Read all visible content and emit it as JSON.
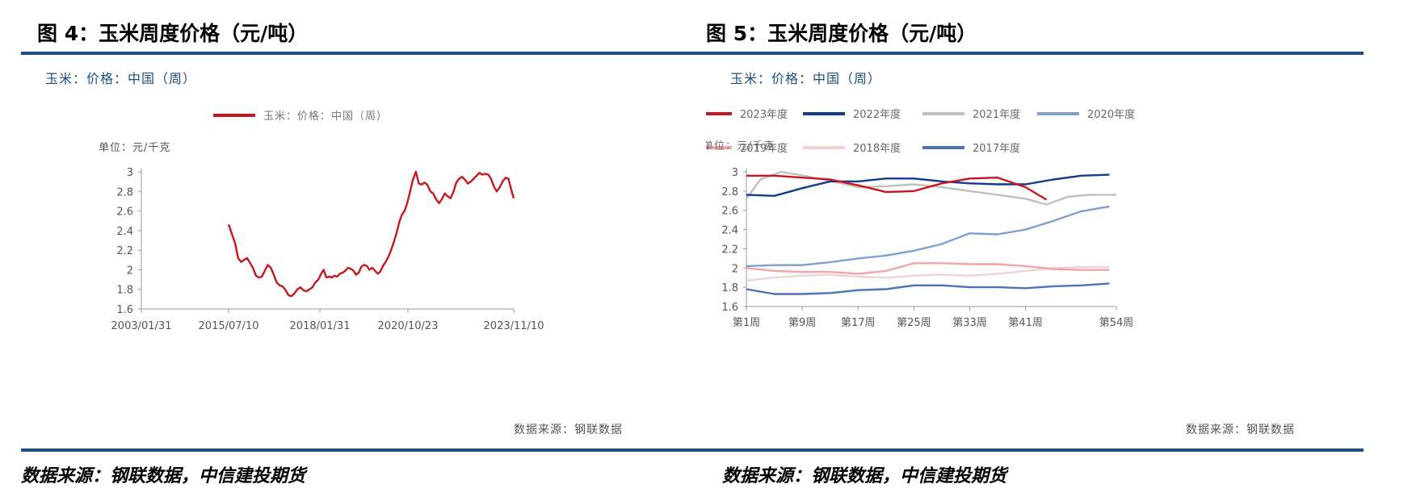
{
  "figures": [
    {
      "title": "图 4：玉米周度价格（元/吨）",
      "subtitle": "玉米：价格：中国（周）",
      "source_inner": "数据来源：钢联数据",
      "source_outer": "数据来源：钢联数据，中信建投期货"
    },
    {
      "title": "图 5：玉米周度价格（元/吨）",
      "subtitle": "玉米：价格：中国（周）",
      "source_inner": "数据来源：钢联数据",
      "source_outer": "数据来源：钢联数据，中信建投期货"
    }
  ],
  "chart_data": [
    {
      "type": "line",
      "unit_label": "单位：元/千克",
      "xlabel": "",
      "ylabel": "",
      "ylim": [
        1.6,
        3.0
      ],
      "yticks": [
        3,
        2.8,
        2.6,
        2.4,
        2.2,
        2,
        1.8,
        1.6
      ],
      "xticks": [
        "2003/01/31",
        "2015/07/10",
        "2018/01/31",
        "2020/10/23",
        "2023/11/10"
      ],
      "grid": false,
      "legend_position": "top-center",
      "colors": {
        "series": "#c8161d",
        "axis": "#999999"
      },
      "series": [
        {
          "name": "玉米：价格：中国（周）",
          "color": "#c8161d",
          "points": [
            [
              "2015-06-15",
              2.46
            ],
            [
              "2015-07-15",
              2.45
            ],
            [
              "2015-08-15",
              2.36
            ],
            [
              "2015-09-15",
              2.27
            ],
            [
              "2015-10-15",
              2.12
            ],
            [
              "2015-11-15",
              2.08
            ],
            [
              "2015-12-15",
              2.1
            ],
            [
              "2016-01-15",
              2.12
            ],
            [
              "2016-02-15",
              2.07
            ],
            [
              "2016-03-15",
              2.02
            ],
            [
              "2016-04-15",
              1.94
            ],
            [
              "2016-05-15",
              1.92
            ],
            [
              "2016-06-15",
              1.93
            ],
            [
              "2016-07-15",
              1.99
            ],
            [
              "2016-08-15",
              2.05
            ],
            [
              "2016-09-15",
              2.02
            ],
            [
              "2016-10-15",
              1.95
            ],
            [
              "2016-11-15",
              1.87
            ],
            [
              "2016-12-15",
              1.84
            ],
            [
              "2017-01-15",
              1.83
            ],
            [
              "2017-02-15",
              1.79
            ],
            [
              "2017-03-15",
              1.74
            ],
            [
              "2017-04-15",
              1.73
            ],
            [
              "2017-05-15",
              1.76
            ],
            [
              "2017-06-15",
              1.8
            ],
            [
              "2017-07-15",
              1.82
            ],
            [
              "2017-08-15",
              1.79
            ],
            [
              "2017-09-15",
              1.78
            ],
            [
              "2017-10-15",
              1.8
            ],
            [
              "2017-11-15",
              1.82
            ],
            [
              "2017-12-15",
              1.87
            ],
            [
              "2018-01-15",
              1.9
            ],
            [
              "2018-02-15",
              1.96
            ],
            [
              "2018-03-15",
              2.0
            ],
            [
              "2018-04-15",
              1.92
            ],
            [
              "2018-05-15",
              1.93
            ],
            [
              "2018-06-15",
              1.92
            ],
            [
              "2018-07-15",
              1.94
            ],
            [
              "2018-08-15",
              1.93
            ],
            [
              "2018-09-15",
              1.96
            ],
            [
              "2018-10-15",
              1.97
            ],
            [
              "2018-11-15",
              1.99
            ],
            [
              "2018-12-15",
              2.02
            ],
            [
              "2019-01-15",
              2.01
            ],
            [
              "2019-02-15",
              1.99
            ],
            [
              "2019-03-15",
              1.95
            ],
            [
              "2019-04-15",
              1.97
            ],
            [
              "2019-05-15",
              2.03
            ],
            [
              "2019-06-15",
              2.05
            ],
            [
              "2019-07-15",
              2.04
            ],
            [
              "2019-08-15",
              2.0
            ],
            [
              "2019-09-15",
              2.02
            ],
            [
              "2019-10-15",
              1.99
            ],
            [
              "2019-11-15",
              1.96
            ],
            [
              "2019-12-15",
              1.98
            ],
            [
              "2020-01-15",
              2.04
            ],
            [
              "2020-02-15",
              2.08
            ],
            [
              "2020-03-15",
              2.13
            ],
            [
              "2020-04-15",
              2.2
            ],
            [
              "2020-05-15",
              2.28
            ],
            [
              "2020-06-15",
              2.37
            ],
            [
              "2020-07-15",
              2.48
            ],
            [
              "2020-08-15",
              2.56
            ],
            [
              "2020-09-15",
              2.6
            ],
            [
              "2020-10-15",
              2.68
            ],
            [
              "2020-11-15",
              2.8
            ],
            [
              "2020-12-15",
              2.92
            ],
            [
              "2021-01-15",
              3.0
            ],
            [
              "2021-02-15",
              2.88
            ],
            [
              "2021-03-15",
              2.87
            ],
            [
              "2021-04-15",
              2.89
            ],
            [
              "2021-05-15",
              2.87
            ],
            [
              "2021-06-15",
              2.8
            ],
            [
              "2021-07-15",
              2.78
            ],
            [
              "2021-08-15",
              2.72
            ],
            [
              "2021-09-15",
              2.68
            ],
            [
              "2021-10-15",
              2.72
            ],
            [
              "2021-11-15",
              2.78
            ],
            [
              "2021-12-15",
              2.75
            ],
            [
              "2022-01-15",
              2.73
            ],
            [
              "2022-02-15",
              2.8
            ],
            [
              "2022-03-15",
              2.89
            ],
            [
              "2022-04-15",
              2.93
            ],
            [
              "2022-05-15",
              2.95
            ],
            [
              "2022-06-15",
              2.92
            ],
            [
              "2022-07-15",
              2.88
            ],
            [
              "2022-08-15",
              2.9
            ],
            [
              "2022-09-15",
              2.93
            ],
            [
              "2022-10-15",
              2.96
            ],
            [
              "2022-11-15",
              2.99
            ],
            [
              "2022-12-15",
              2.97
            ],
            [
              "2023-01-15",
              2.98
            ],
            [
              "2023-02-15",
              2.97
            ],
            [
              "2023-03-15",
              2.93
            ],
            [
              "2023-04-15",
              2.85
            ],
            [
              "2023-05-15",
              2.8
            ],
            [
              "2023-06-15",
              2.84
            ],
            [
              "2023-07-15",
              2.9
            ],
            [
              "2023-08-15",
              2.94
            ],
            [
              "2023-09-15",
              2.93
            ],
            [
              "2023-10-15",
              2.82
            ],
            [
              "2023-11-10",
              2.73
            ]
          ]
        }
      ]
    },
    {
      "type": "line",
      "unit_label": "单位：元/千克",
      "xlabel": "",
      "ylabel": "",
      "ylim": [
        1.6,
        3.0
      ],
      "yticks": [
        3,
        2.8,
        2.6,
        2.4,
        2.2,
        2,
        1.8,
        1.6
      ],
      "xticks": [
        {
          "week": 1,
          "label": "第1周"
        },
        {
          "week": 9,
          "label": "第9周"
        },
        {
          "week": 17,
          "label": "第17周"
        },
        {
          "week": 25,
          "label": "第25周"
        },
        {
          "week": 33,
          "label": "第33周"
        },
        {
          "week": 41,
          "label": "第41周"
        },
        {
          "week": 54,
          "label": "第54周"
        }
      ],
      "grid": false,
      "legend_position": "top",
      "colors": {
        "axis": "#999999"
      },
      "series": [
        {
          "name": "2023年度",
          "color": "#c8161d",
          "points": [
            [
              1,
              2.96
            ],
            [
              5,
              2.96
            ],
            [
              9,
              2.94
            ],
            [
              13,
              2.92
            ],
            [
              17,
              2.86
            ],
            [
              21,
              2.79
            ],
            [
              25,
              2.8
            ],
            [
              29,
              2.88
            ],
            [
              33,
              2.93
            ],
            [
              37,
              2.94
            ],
            [
              41,
              2.84
            ],
            [
              44,
              2.71
            ]
          ]
        },
        {
          "name": "2022年度",
          "color": "#0f3c8c",
          "points": [
            [
              1,
              2.76
            ],
            [
              5,
              2.75
            ],
            [
              9,
              2.83
            ],
            [
              13,
              2.9
            ],
            [
              17,
              2.9
            ],
            [
              21,
              2.93
            ],
            [
              25,
              2.93
            ],
            [
              29,
              2.9
            ],
            [
              33,
              2.88
            ],
            [
              37,
              2.87
            ],
            [
              41,
              2.87
            ],
            [
              45,
              2.92
            ],
            [
              49,
              2.96
            ],
            [
              53,
              2.97
            ]
          ]
        },
        {
          "name": "2021年度",
          "color": "#bfbfbf",
          "points": [
            [
              1,
              2.72
            ],
            [
              3,
              2.92
            ],
            [
              6,
              3.0
            ],
            [
              10,
              2.95
            ],
            [
              14,
              2.89
            ],
            [
              17,
              2.84
            ],
            [
              21,
              2.85
            ],
            [
              25,
              2.87
            ],
            [
              29,
              2.84
            ],
            [
              33,
              2.8
            ],
            [
              37,
              2.76
            ],
            [
              41,
              2.72
            ],
            [
              44,
              2.66
            ],
            [
              47,
              2.74
            ],
            [
              50,
              2.76
            ],
            [
              54,
              2.76
            ]
          ]
        },
        {
          "name": "2020年度",
          "color": "#7f9fd4",
          "points": [
            [
              1,
              2.02
            ],
            [
              5,
              2.03
            ],
            [
              9,
              2.03
            ],
            [
              13,
              2.06
            ],
            [
              17,
              2.1
            ],
            [
              21,
              2.13
            ],
            [
              25,
              2.18
            ],
            [
              29,
              2.25
            ],
            [
              33,
              2.36
            ],
            [
              37,
              2.35
            ],
            [
              41,
              2.4
            ],
            [
              45,
              2.49
            ],
            [
              49,
              2.59
            ],
            [
              53,
              2.64
            ]
          ]
        },
        {
          "name": "2019年度",
          "color": "#f4a3a8",
          "points": [
            [
              1,
              2.0
            ],
            [
              5,
              1.97
            ],
            [
              9,
              1.96
            ],
            [
              13,
              1.96
            ],
            [
              17,
              1.94
            ],
            [
              21,
              1.97
            ],
            [
              25,
              2.05
            ],
            [
              29,
              2.05
            ],
            [
              33,
              2.04
            ],
            [
              37,
              2.04
            ],
            [
              41,
              2.02
            ],
            [
              45,
              1.99
            ],
            [
              49,
              1.98
            ],
            [
              53,
              1.98
            ]
          ]
        },
        {
          "name": "2018年度",
          "color": "#f2d3d5",
          "points": [
            [
              1,
              1.87
            ],
            [
              5,
              1.9
            ],
            [
              9,
              1.92
            ],
            [
              13,
              1.93
            ],
            [
              17,
              1.91
            ],
            [
              21,
              1.9
            ],
            [
              25,
              1.92
            ],
            [
              29,
              1.93
            ],
            [
              33,
              1.92
            ],
            [
              37,
              1.94
            ],
            [
              41,
              1.97
            ],
            [
              45,
              2.0
            ],
            [
              49,
              2.01
            ],
            [
              53,
              2.01
            ]
          ]
        },
        {
          "name": "2017年度",
          "color": "#4a72b8",
          "points": [
            [
              1,
              1.78
            ],
            [
              5,
              1.73
            ],
            [
              9,
              1.73
            ],
            [
              13,
              1.74
            ],
            [
              17,
              1.77
            ],
            [
              21,
              1.78
            ],
            [
              25,
              1.82
            ],
            [
              29,
              1.82
            ],
            [
              33,
              1.8
            ],
            [
              37,
              1.8
            ],
            [
              41,
              1.79
            ],
            [
              45,
              1.81
            ],
            [
              49,
              1.82
            ],
            [
              53,
              1.84
            ]
          ]
        }
      ]
    }
  ]
}
